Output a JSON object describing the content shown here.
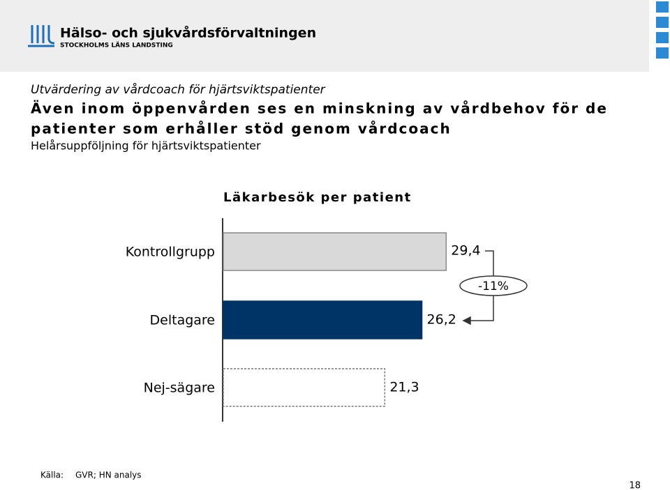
{
  "header": {
    "logo_name": "Hälso- och sjukvårdsförvaltningen",
    "logo_sub": "STOCKHOLMS LÄNS LANDSTING"
  },
  "slide": {
    "supertitle": "Utvärdering av vårdcoach för hjärtsviktspatienter",
    "title_line1": "Även inom öppenvården ses en minskning av vårdbehov för de",
    "title_line2": "patienter som erhåller stöd genom vårdcoach",
    "subtitle": "Helårsuppföljning för hjärtsviktspatienter"
  },
  "chart_data": {
    "type": "bar",
    "orientation": "horizontal",
    "title": "Läkarbesök per patient",
    "categories": [
      "Kontrollgrupp",
      "Deltagare",
      "Nej-sägare"
    ],
    "values": [
      29.4,
      26.2,
      21.3
    ],
    "value_labels": [
      "29,4",
      "26,2",
      "21,3"
    ],
    "colors": [
      "#d9d9d9",
      "#003366",
      "#ffffff"
    ],
    "annotation": "-11%"
  },
  "footer": {
    "source_label": "Källa:",
    "source": "GVR; HN analys",
    "page": "18"
  }
}
